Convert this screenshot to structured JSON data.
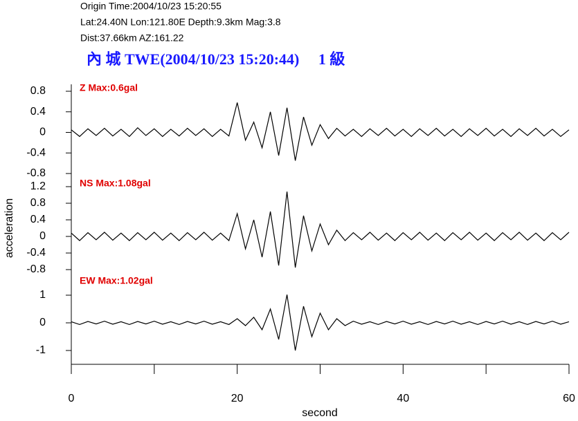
{
  "chart_data": {
    "type": "line",
    "header": [
      "Origin Time:2004/10/23 15:20:55",
      "Lat:24.40N  Lon:121.80E  Depth:9.3km  Mag:3.8",
      "Dist:37.66km  AZ:161.22"
    ],
    "title": "內 城 TWE(2004/10/23 15:20:44)     1 級",
    "ylabel": "acceleration",
    "xlabel": "second",
    "xlim": [
      0,
      60
    ],
    "xticks": [
      0,
      20,
      40,
      60
    ],
    "xticks_minor": [
      10,
      30,
      50
    ],
    "x": [
      0,
      1,
      2,
      3,
      4,
      5,
      6,
      7,
      8,
      9,
      10,
      11,
      12,
      13,
      14,
      15,
      16,
      17,
      18,
      19,
      20,
      21,
      22,
      23,
      24,
      25,
      26,
      27,
      28,
      29,
      30,
      31,
      32,
      33,
      34,
      35,
      36,
      37,
      38,
      39,
      40,
      41,
      42,
      43,
      44,
      45,
      46,
      47,
      48,
      49,
      50,
      51,
      52,
      53,
      54,
      55,
      56,
      57,
      58,
      59,
      60
    ],
    "panels": [
      {
        "label": "Z Max:0.6gal",
        "color": "#000000",
        "ylim": [
          -0.8,
          0.8
        ],
        "yticks": [
          -0.8,
          -0.4,
          0,
          0.4,
          0.8
        ],
        "values": [
          0.05,
          -0.08,
          0.07,
          -0.06,
          0.08,
          -0.07,
          0.06,
          -0.08,
          0.09,
          -0.06,
          0.07,
          -0.08,
          0.06,
          -0.07,
          0.08,
          -0.06,
          0.07,
          -0.08,
          0.06,
          -0.07,
          0.58,
          -0.15,
          0.2,
          -0.3,
          0.4,
          -0.45,
          0.48,
          -0.55,
          0.3,
          -0.25,
          0.15,
          -0.12,
          0.08,
          -0.07,
          0.06,
          -0.08,
          0.07,
          -0.06,
          0.08,
          -0.07,
          0.06,
          -0.08,
          0.07,
          -0.06,
          0.08,
          -0.07,
          0.06,
          -0.08,
          0.07,
          -0.06,
          0.08,
          -0.07,
          0.06,
          -0.08,
          0.07,
          -0.06,
          0.08,
          -0.07,
          0.06,
          -0.08,
          0.05
        ]
      },
      {
        "label": "NS Max:1.08gal",
        "color": "#000000",
        "ylim": [
          -0.8,
          1.2
        ],
        "yticks": [
          -0.8,
          -0.4,
          0,
          0.4,
          0.8,
          1.2
        ],
        "values": [
          0.08,
          -0.1,
          0.09,
          -0.08,
          0.1,
          -0.09,
          0.08,
          -0.1,
          0.09,
          -0.08,
          0.1,
          -0.09,
          0.08,
          -0.1,
          0.09,
          -0.08,
          0.1,
          -0.09,
          0.08,
          -0.1,
          0.55,
          -0.3,
          0.4,
          -0.5,
          0.6,
          -0.7,
          1.08,
          -0.75,
          0.5,
          -0.35,
          0.3,
          -0.2,
          0.15,
          -0.1,
          0.09,
          -0.08,
          0.1,
          -0.09,
          0.08,
          -0.1,
          0.09,
          -0.08,
          0.1,
          -0.09,
          0.08,
          -0.1,
          0.09,
          -0.08,
          0.1,
          -0.09,
          0.08,
          -0.1,
          0.09,
          -0.08,
          0.1,
          -0.09,
          0.08,
          -0.1,
          0.09,
          -0.08,
          0.1
        ]
      },
      {
        "label": "EW Max:1.02gal",
        "color": "#000000",
        "ylim": [
          -1.5,
          1.4
        ],
        "yticks": [
          -1,
          0,
          1
        ],
        "values": [
          0.04,
          -0.06,
          0.05,
          -0.04,
          0.06,
          -0.05,
          0.04,
          -0.06,
          0.05,
          -0.04,
          0.06,
          -0.05,
          0.04,
          -0.06,
          0.05,
          -0.04,
          0.06,
          -0.05,
          0.04,
          -0.06,
          0.15,
          -0.1,
          0.2,
          -0.25,
          0.5,
          -0.6,
          1.02,
          -1.0,
          0.6,
          -0.5,
          0.35,
          -0.25,
          0.15,
          -0.1,
          0.06,
          -0.05,
          0.04,
          -0.06,
          0.05,
          -0.04,
          0.06,
          -0.05,
          0.04,
          -0.06,
          0.05,
          -0.04,
          0.06,
          -0.05,
          0.04,
          -0.06,
          0.05,
          -0.04,
          0.06,
          -0.05,
          0.04,
          -0.06,
          0.05,
          -0.04,
          0.06,
          -0.05,
          0.04
        ]
      }
    ]
  }
}
